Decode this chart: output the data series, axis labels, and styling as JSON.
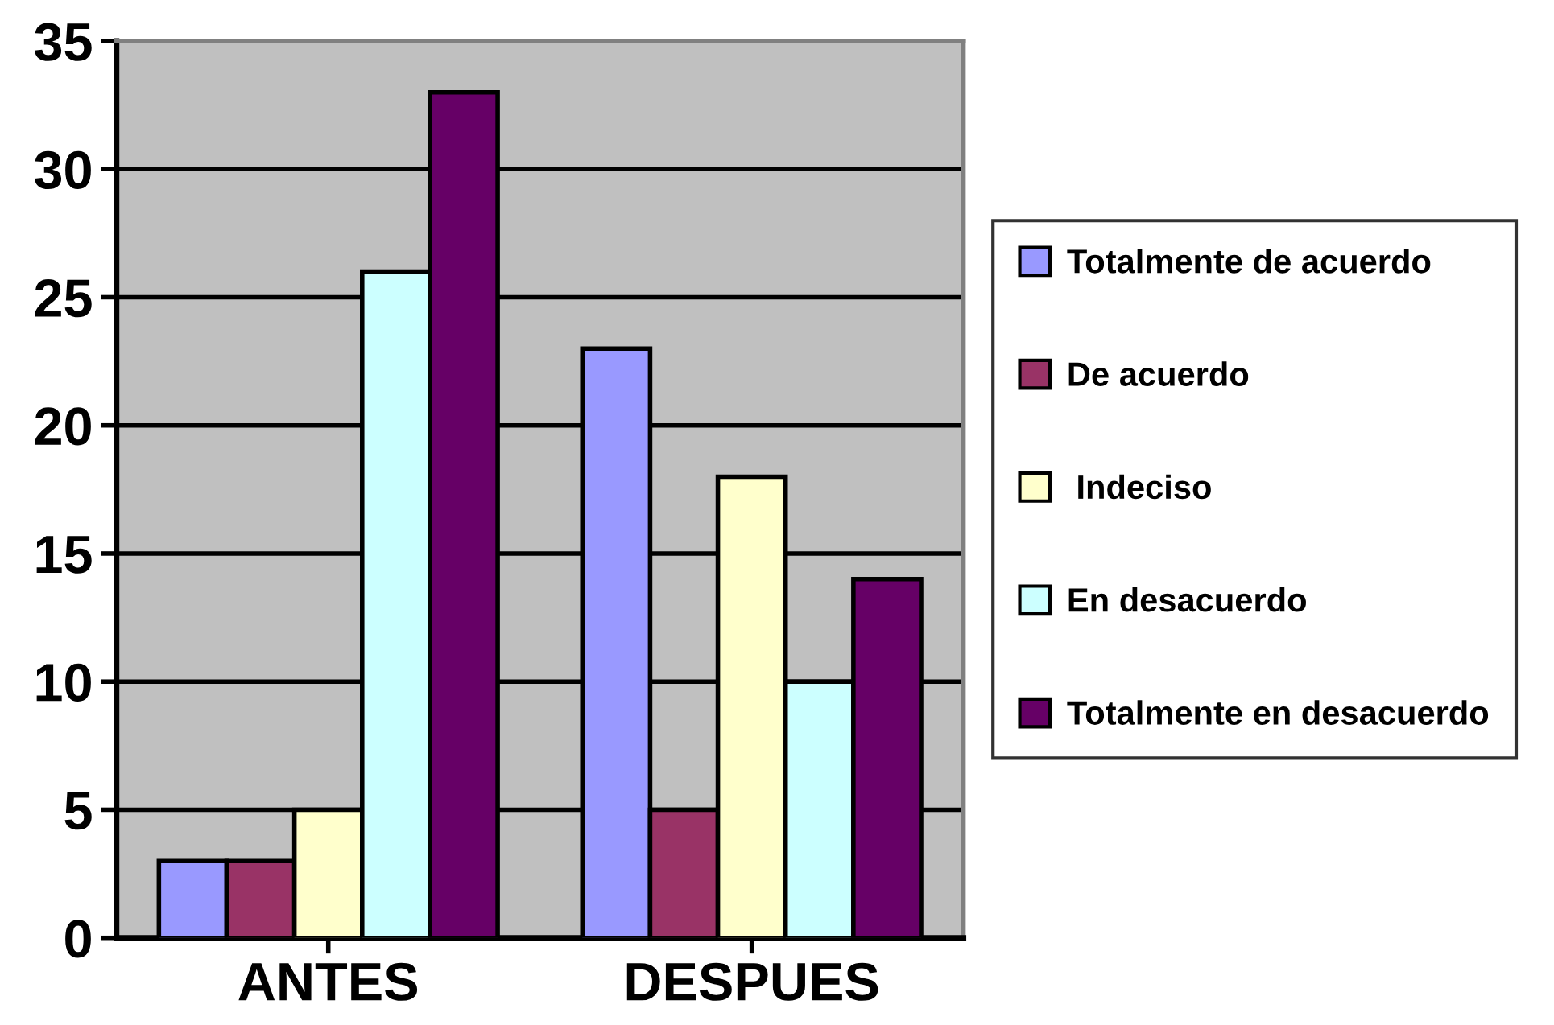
{
  "chart_data": {
    "type": "bar",
    "categories": [
      "ANTES",
      "DESPUES"
    ],
    "series": [
      {
        "name": "Totalmente de acuerdo",
        "color": "#9999ff",
        "values": [
          3,
          23
        ]
      },
      {
        "name": "De acuerdo",
        "color": "#993366",
        "values": [
          3,
          5
        ]
      },
      {
        "name": " Indeciso",
        "color": "#ffffcc",
        "values": [
          5,
          18
        ]
      },
      {
        "name": "En desacuerdo",
        "color": "#ccffff",
        "values": [
          26,
          10
        ]
      },
      {
        "name": "Totalmente en desacuerdo",
        "color": "#660066",
        "values": [
          33,
          14
        ]
      }
    ],
    "ylim": [
      0,
      35
    ],
    "yticks": [
      0,
      5,
      10,
      15,
      20,
      25,
      30,
      35
    ],
    "grid": "y",
    "legend": "right"
  }
}
